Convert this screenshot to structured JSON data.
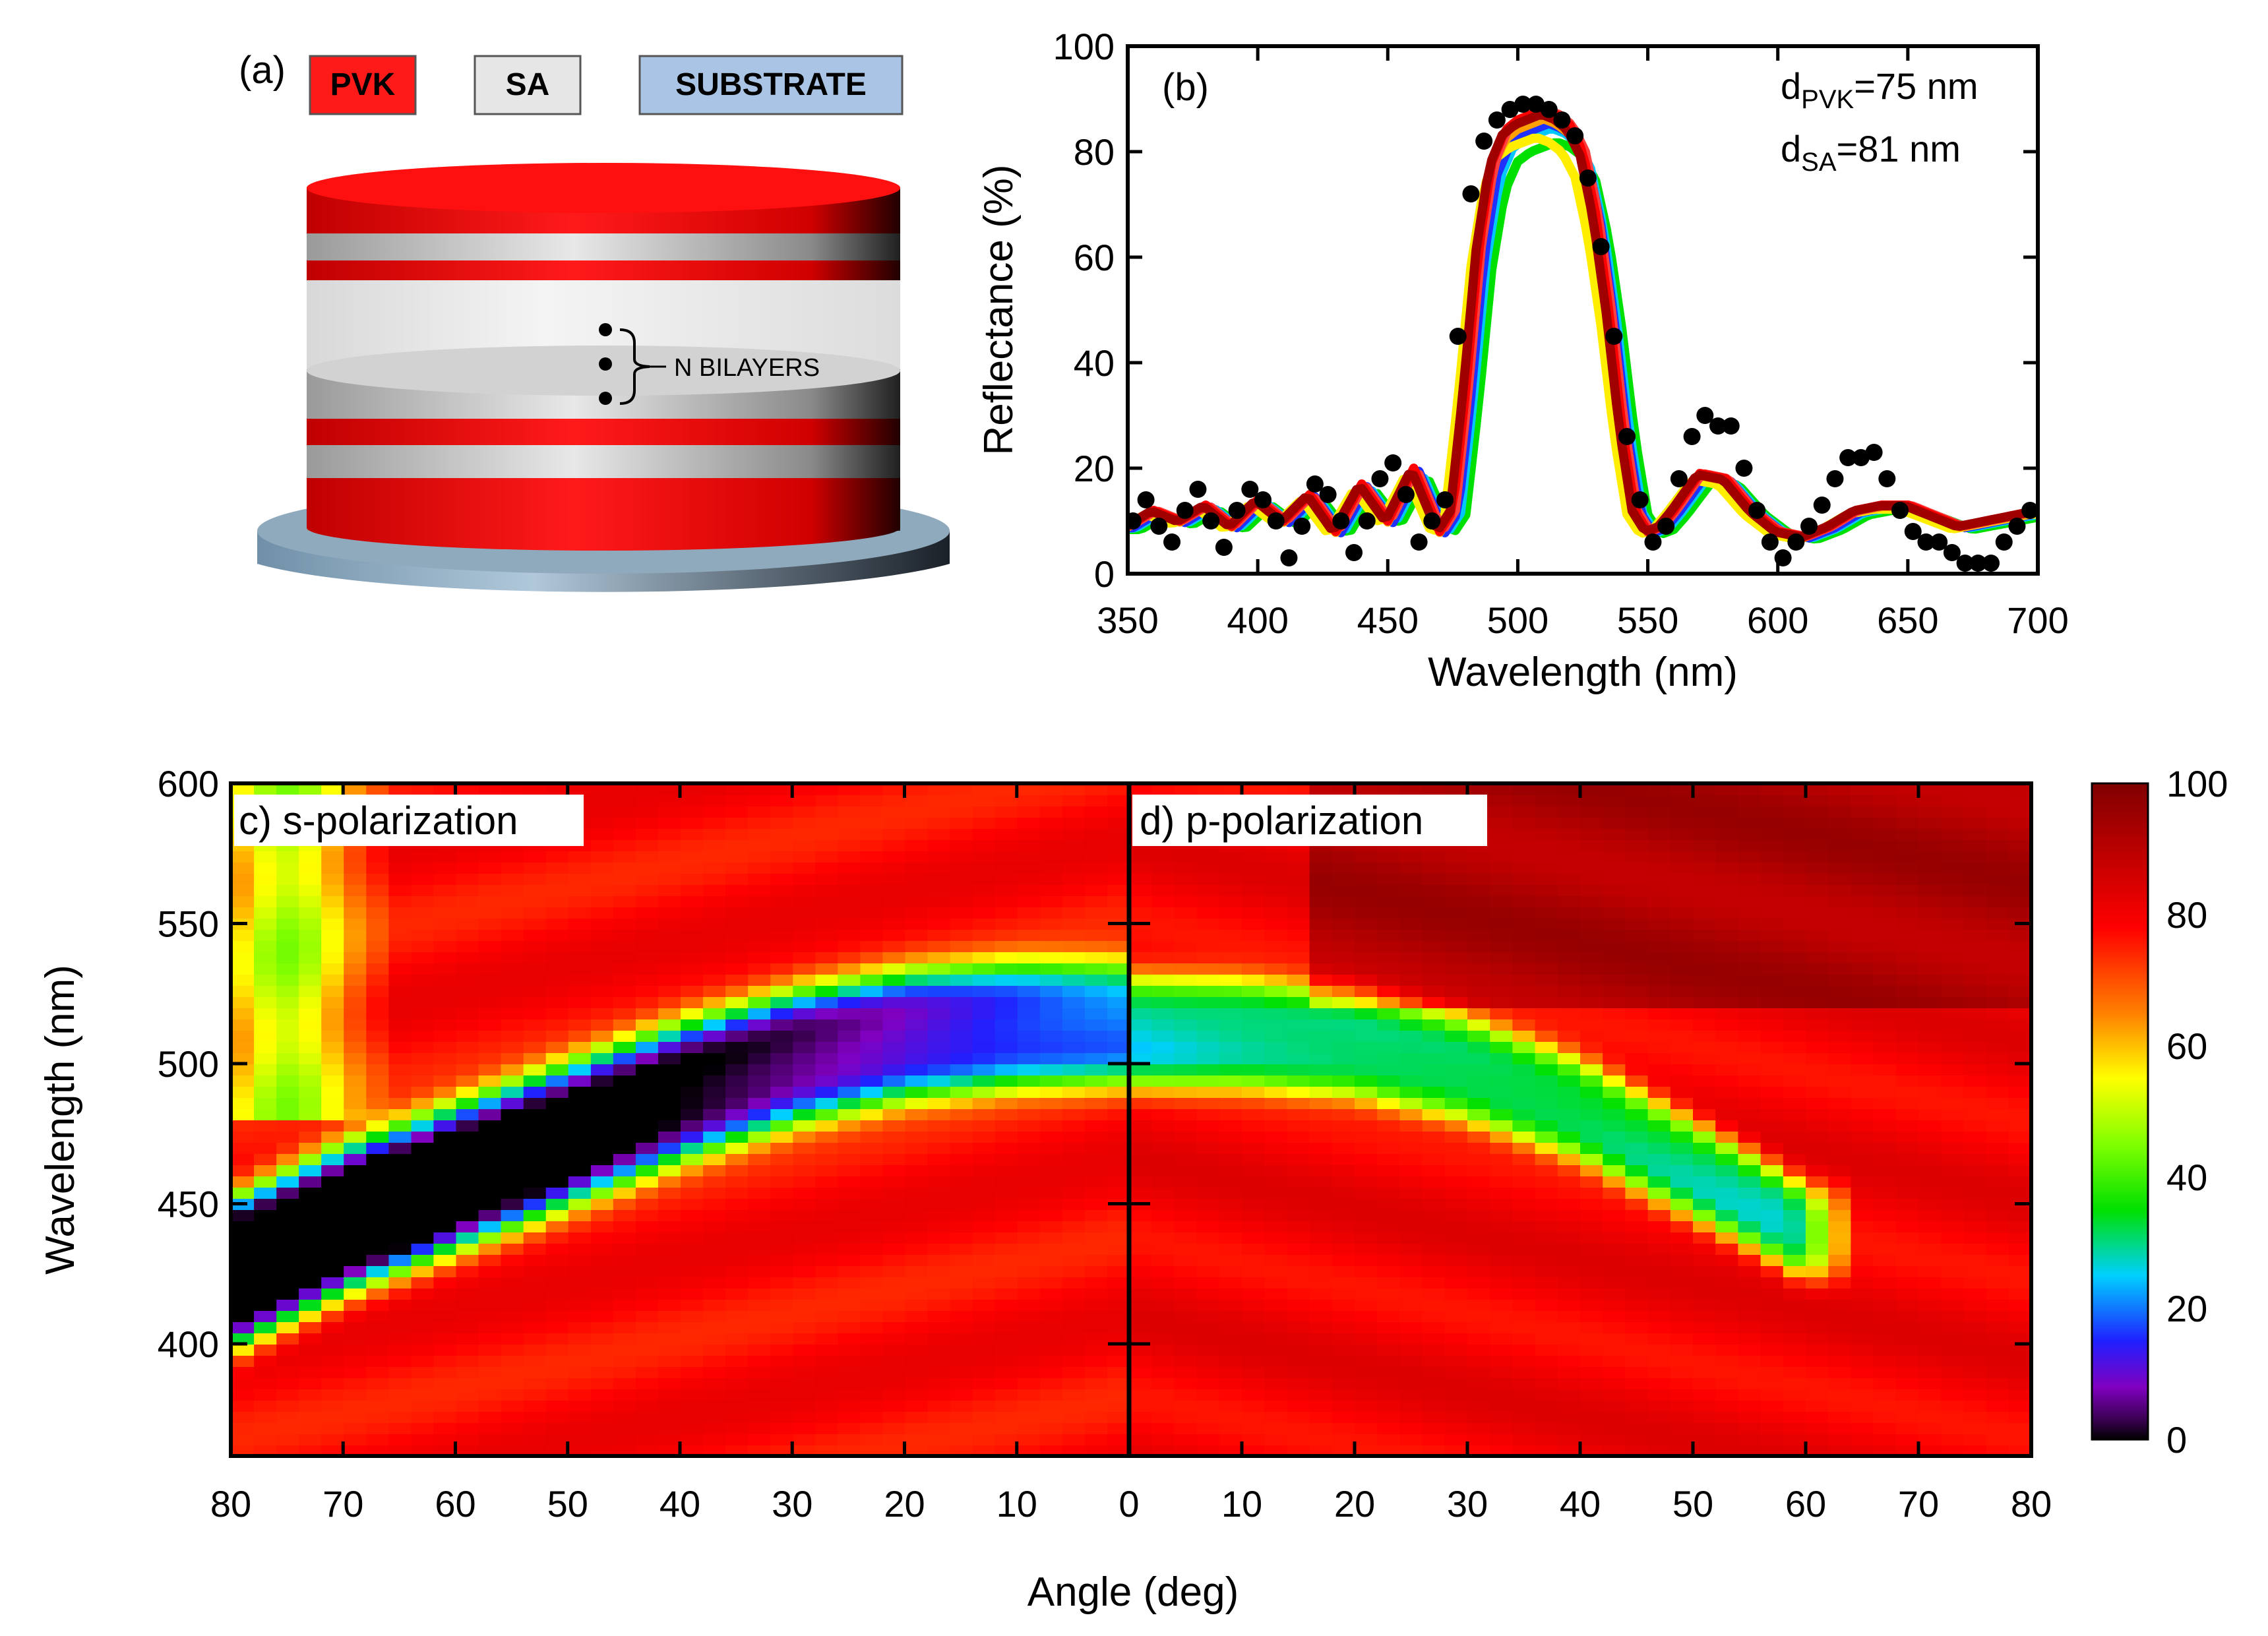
{
  "panel_a": {
    "label": "(a)",
    "legend": [
      {
        "text": "PVK",
        "fill": "#ff1a1a",
        "text_color": "#ffffff"
      },
      {
        "text": "SA",
        "fill": "#e6e6e6",
        "text_color": "#000000"
      },
      {
        "text": "SUBSTRATE",
        "fill": "#a9c4e4",
        "text_color": "#1a1a1a"
      }
    ],
    "annotation": "N BILAYERS",
    "colors": {
      "pvk": "#ff1010",
      "sa": "#d0d0d0",
      "substrate": "#8aa8c0"
    }
  },
  "chart_data": [
    {
      "id": "b",
      "type": "line",
      "panel_label": "(b)",
      "xlabel": "Wavelength (nm)",
      "ylabel": "Reflectance (%)",
      "xlim": [
        350,
        700
      ],
      "ylim": [
        0,
        100
      ],
      "xticks": [
        "350",
        "400",
        "450",
        "500",
        "550",
        "600",
        "650",
        "700"
      ],
      "yticks": [
        "0",
        "20",
        "40",
        "60",
        "80",
        "100"
      ],
      "annotation_lines": [
        {
          "main": "d",
          "sub": "PVK",
          "tail": "=75 nm"
        },
        {
          "main": "d",
          "sub": "SA",
          "tail": "=81 nm"
        }
      ],
      "series_colors": [
        "#00e000",
        "#00c8ff",
        "#2030ff",
        "#ffee00",
        "#ffa000",
        "#ff4040",
        "#ff0000",
        "#a00000"
      ],
      "series": [
        {
          "color": "#00e000",
          "shift": 5,
          "amp": 0.93
        },
        {
          "color": "#00c8ff",
          "shift": 3,
          "amp": 0.96
        },
        {
          "color": "#2030ff",
          "shift": 2,
          "amp": 0.97
        },
        {
          "color": "#ffee00",
          "shift": -3,
          "amp": 0.94
        },
        {
          "color": "#ffa000",
          "shift": 0,
          "amp": 0.98
        },
        {
          "color": "#ff4040",
          "shift": 1,
          "amp": 1.0
        },
        {
          "color": "#ff0000",
          "shift": 0,
          "amp": 1.0
        },
        {
          "color": "#a00000",
          "shift": -1,
          "amp": 0.99
        }
      ],
      "base_curve": {
        "x": [
          350,
          360,
          370,
          380,
          390,
          400,
          410,
          420,
          430,
          440,
          450,
          460,
          470,
          475,
          480,
          485,
          490,
          495,
          500,
          505,
          510,
          515,
          520,
          525,
          530,
          535,
          540,
          545,
          550,
          555,
          560,
          570,
          580,
          590,
          600,
          610,
          620,
          630,
          640,
          650,
          660,
          670,
          680,
          690,
          700
        ],
        "y": [
          9,
          12,
          10,
          13,
          9,
          14,
          10,
          15,
          8,
          17,
          10,
          20,
          8,
          12,
          35,
          62,
          78,
          84,
          86,
          87,
          88,
          87,
          85,
          80,
          68,
          50,
          28,
          12,
          8,
          9,
          12,
          19,
          18,
          12,
          8,
          7,
          9,
          12,
          13,
          13,
          11,
          9,
          10,
          11,
          12
        ]
      },
      "measured": {
        "color": "#000000",
        "x": [
          352,
          357,
          362,
          367,
          372,
          377,
          382,
          387,
          392,
          397,
          402,
          407,
          412,
          417,
          422,
          427,
          432,
          437,
          442,
          447,
          452,
          457,
          462,
          467,
          472,
          477,
          482,
          487,
          492,
          497,
          502,
          507,
          512,
          517,
          522,
          527,
          532,
          537,
          542,
          547,
          552,
          557,
          562,
          567,
          572,
          577,
          582,
          587,
          592,
          597,
          602,
          607,
          612,
          617,
          622,
          627,
          632,
          637,
          642,
          647,
          652,
          657,
          662,
          667,
          672,
          677,
          682,
          687,
          692,
          697
        ],
        "y": [
          10,
          14,
          9,
          6,
          12,
          16,
          10,
          5,
          12,
          16,
          14,
          10,
          3,
          9,
          17,
          15,
          10,
          4,
          10,
          18,
          21,
          15,
          6,
          10,
          14,
          45,
          72,
          82,
          86,
          88,
          89,
          89,
          88,
          86,
          83,
          75,
          62,
          45,
          26,
          14,
          6,
          9,
          18,
          26,
          30,
          28,
          28,
          20,
          12,
          6,
          3,
          6,
          9,
          13,
          18,
          22,
          22,
          23,
          18,
          12,
          8,
          6,
          6,
          4,
          2,
          2,
          2,
          6,
          9,
          12
        ]
      }
    },
    {
      "id": "c",
      "type": "heatmap",
      "panel_label": "c) s-polarization",
      "xlabel": "Angle (deg)",
      "ylabel": "Wavelength (nm)",
      "xlim": [
        80,
        0
      ],
      "ylim": [
        360,
        600
      ],
      "xticks": [
        "80",
        "70",
        "60",
        "50",
        "40",
        "30",
        "20",
        "10",
        "0"
      ],
      "yticks": [
        "600",
        "550",
        "500",
        "450",
        "400"
      ],
      "band_center_nm": {
        "angle": [
          0,
          10,
          20,
          30,
          40,
          50,
          60,
          70,
          80
        ],
        "center": [
          515,
          514,
          510,
          502,
          490,
          475,
          460,
          445,
          425
        ]
      },
      "band_halfwidth_nm": 22,
      "background_percent": 78
    },
    {
      "id": "d",
      "type": "heatmap",
      "panel_label": "d) p-polarization",
      "xlabel": "Angle (deg)",
      "ylabel": "Wavelength (nm)",
      "xlim": [
        0,
        80
      ],
      "ylim": [
        360,
        600
      ],
      "xticks": [
        "0",
        "10",
        "20",
        "30",
        "40",
        "50",
        "60",
        "70",
        "80"
      ],
      "band_center_nm": {
        "angle": [
          0,
          10,
          20,
          30,
          40,
          50,
          55,
          60
        ],
        "center": [
          512,
          511,
          507,
          498,
          484,
          463,
          452,
          440
        ]
      },
      "band_halfwidth_nm": 20,
      "background_percent": 80
    }
  ],
  "colorbar": {
    "ticks": [
      "0",
      "20",
      "40",
      "60",
      "80",
      "100"
    ],
    "range": [
      0,
      100
    ],
    "stops": [
      {
        "v": 0,
        "c": "#000000"
      },
      {
        "v": 3,
        "c": "#3a0050"
      },
      {
        "v": 8,
        "c": "#8000c0"
      },
      {
        "v": 15,
        "c": "#2020ff"
      },
      {
        "v": 25,
        "c": "#00d0ff"
      },
      {
        "v": 35,
        "c": "#00e000"
      },
      {
        "v": 45,
        "c": "#80ff00"
      },
      {
        "v": 55,
        "c": "#ffff00"
      },
      {
        "v": 65,
        "c": "#ff8000"
      },
      {
        "v": 78,
        "c": "#ff0000"
      },
      {
        "v": 100,
        "c": "#800000"
      }
    ]
  },
  "heatmap_shared_xlabel": "Angle (deg)"
}
